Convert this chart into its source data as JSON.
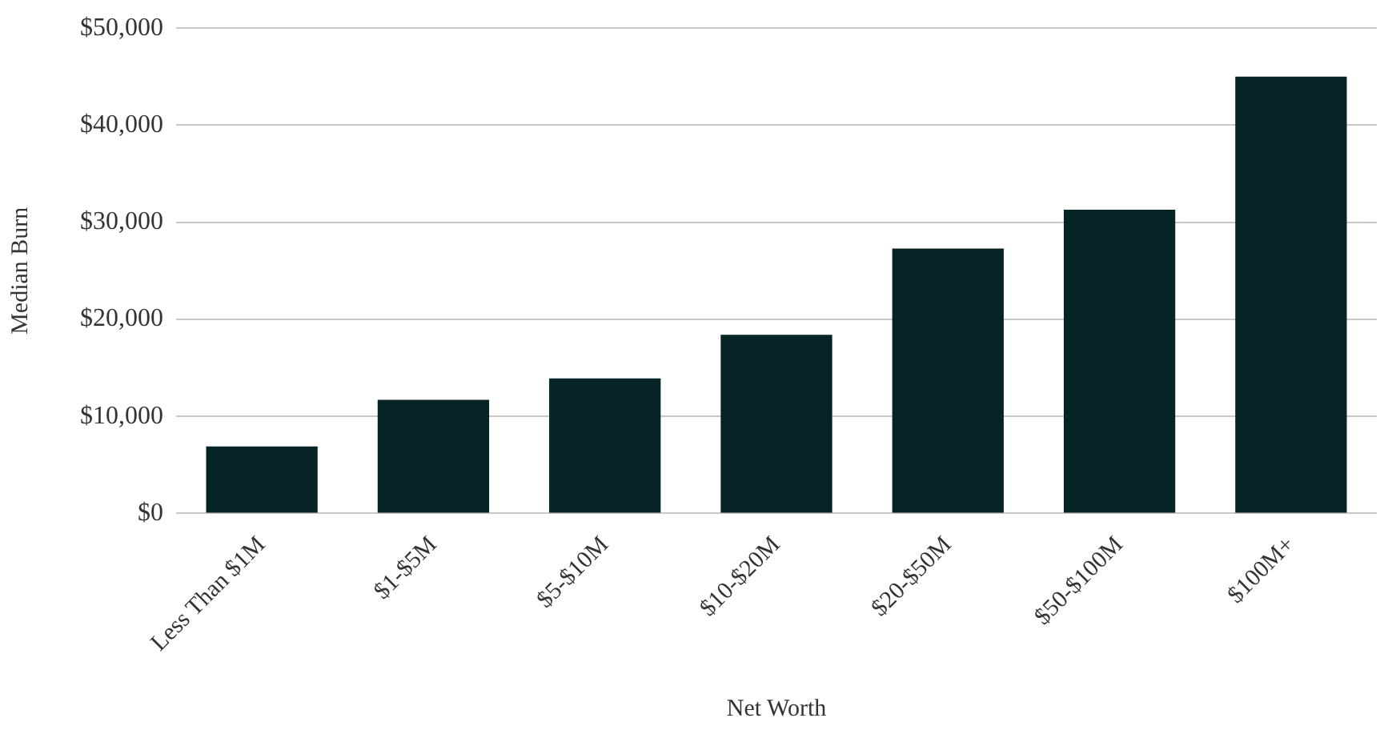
{
  "chart_data": {
    "type": "bar",
    "xlabel": "Net Worth",
    "ylabel": "Median Burn",
    "categories": [
      "Less Than $1M",
      "$1-$5M",
      "$5-$10M",
      "$10-$20M",
      "$20-$50M",
      "$50-$100M",
      "$100M+"
    ],
    "values": [
      6900,
      11700,
      13900,
      18400,
      27300,
      31300,
      45000
    ],
    "color": "#062326",
    "ylim": [
      0,
      50000
    ],
    "yticks": [
      {
        "value": 0,
        "label": "$0"
      },
      {
        "value": 10000,
        "label": "$10,000"
      },
      {
        "value": 20000,
        "label": "$20,000"
      },
      {
        "value": 30000,
        "label": "$30,000"
      },
      {
        "value": 40000,
        "label": "$40,000"
      },
      {
        "value": 50000,
        "label": "$50,000"
      }
    ],
    "grid": "y",
    "legend": false
  }
}
